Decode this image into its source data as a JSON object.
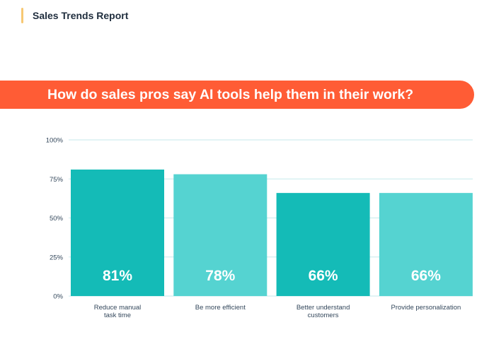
{
  "header": {
    "title": "Sales Trends Report",
    "accent_color": "#f7c873"
  },
  "banner": {
    "title": "How do sales pros say AI tools help them in their work?",
    "color": "#ff5c35"
  },
  "chart_data": {
    "type": "bar",
    "title": "How do sales pros say AI tools help them in their work?",
    "categories": [
      [
        "Reduce manual",
        "task time"
      ],
      [
        "Be more efficient"
      ],
      [
        "Better understand",
        "customers"
      ],
      [
        "Provide personalization"
      ]
    ],
    "values": [
      81,
      78,
      66,
      66
    ],
    "value_labels": [
      "81%",
      "78%",
      "66%",
      "66%"
    ],
    "bar_colors": [
      "#14bbb7",
      "#55d3d1",
      "#14bbb7",
      "#55d3d1"
    ],
    "yticks": [
      "0%",
      "25%",
      "50%",
      "75%",
      "100%"
    ],
    "ytick_values": [
      0,
      25,
      50,
      75,
      100
    ],
    "ylim": [
      0,
      100
    ],
    "grid": true,
    "grid_color": "#c5eaeb",
    "xlabel": "",
    "ylabel": ""
  }
}
